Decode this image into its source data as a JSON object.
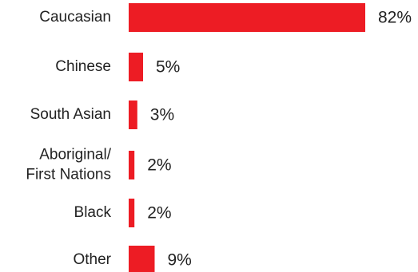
{
  "chart_data": {
    "type": "bar",
    "orientation": "horizontal",
    "categories": [
      [
        "Caucasian"
      ],
      [
        "Chinese"
      ],
      [
        "South Asian"
      ],
      [
        "Aboriginal/",
        "First Nations"
      ],
      [
        "Black"
      ],
      [
        "Other"
      ]
    ],
    "values": [
      82,
      5,
      3,
      2,
      2,
      9
    ],
    "value_labels": [
      "82%",
      "5%",
      "3%",
      "2%",
      "2%",
      "9%"
    ],
    "unit": "%",
    "xlim": [
      0,
      82
    ],
    "bar_color": "#ED1C24",
    "grid": false,
    "legend": "none",
    "title": "",
    "xlabel": "",
    "ylabel": ""
  }
}
